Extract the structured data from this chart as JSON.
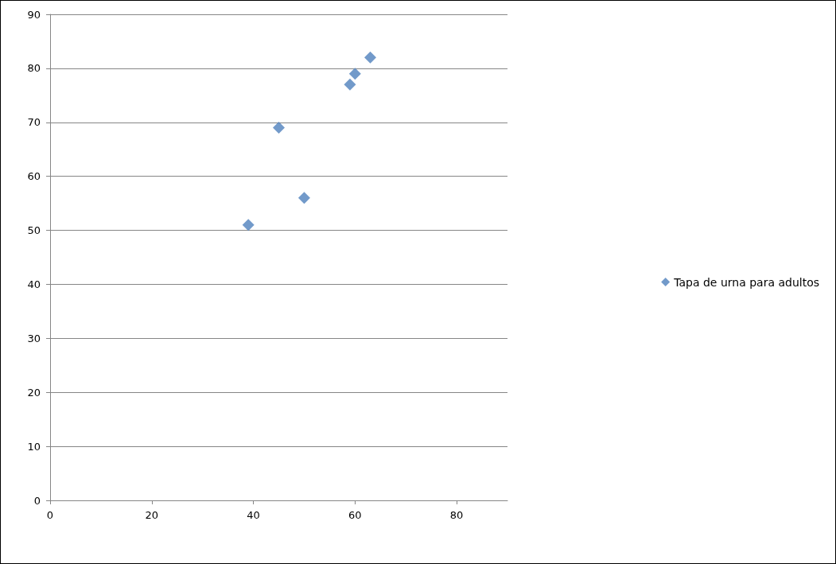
{
  "chart_data": {
    "type": "scatter",
    "x": [
      39,
      45,
      50,
      59,
      60,
      63
    ],
    "series": [
      {
        "name": "Tapa de urna para adultos",
        "color": "#4f81bd",
        "values": [
          51,
          69,
          56,
          77,
          79,
          82
        ]
      }
    ],
    "xlim": [
      0,
      90
    ],
    "xticks": [
      0,
      20,
      40,
      60,
      80
    ],
    "ylim": [
      0,
      90
    ],
    "yticks": [
      0,
      10,
      20,
      30,
      40,
      50,
      60,
      70,
      80,
      90
    ],
    "grid": "y",
    "legend": "right",
    "marker": "diamond"
  }
}
